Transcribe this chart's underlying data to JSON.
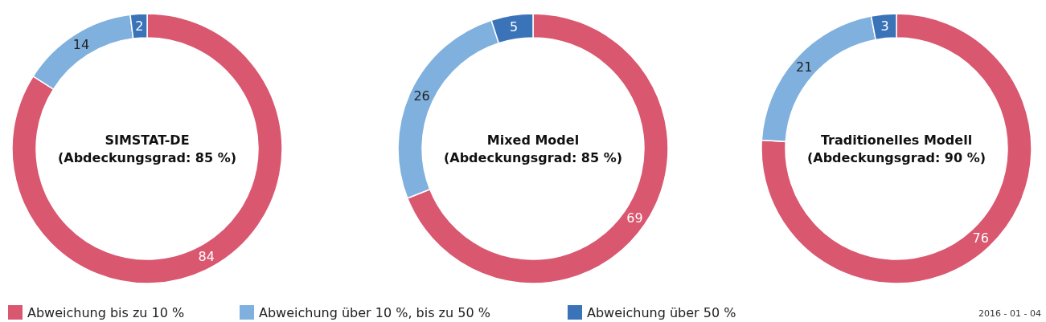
{
  "chart_data": [
    {
      "type": "donut",
      "title": "SIMSTAT-DE\n(Abdeckungsgrad: 85 %)",
      "categories": [
        "Abweichung bis zu 10 %",
        "Abweichung über 10 %, bis zu 50 %",
        "Abweichung über 50 %"
      ],
      "values": [
        84,
        14,
        2
      ],
      "colors": [
        "#d9576f",
        "#7fb0de",
        "#3b73b9"
      ],
      "data_labels": true,
      "legend": "bottom"
    },
    {
      "type": "donut",
      "title": "Mixed Model\n(Abdeckungsgrad: 85 %)",
      "categories": [
        null,
        null,
        null
      ],
      "values": [
        69,
        26,
        5
      ],
      "colors": [
        "#d9576f",
        "#7fb0de",
        "#3b73b9"
      ],
      "data_labels": true
    },
    {
      "type": "donut",
      "title": "Traditionelles Modell\n(Abdeckungsgrad: 90 %)",
      "categories": [
        null,
        null,
        null
      ],
      "values": [
        76,
        21,
        3
      ],
      "colors": [
        "#d9576f",
        "#7fb0de",
        "#3b73b9"
      ],
      "data_labels": true,
      "annotations": [
        "2016 - 01 - 04"
      ]
    }
  ]
}
